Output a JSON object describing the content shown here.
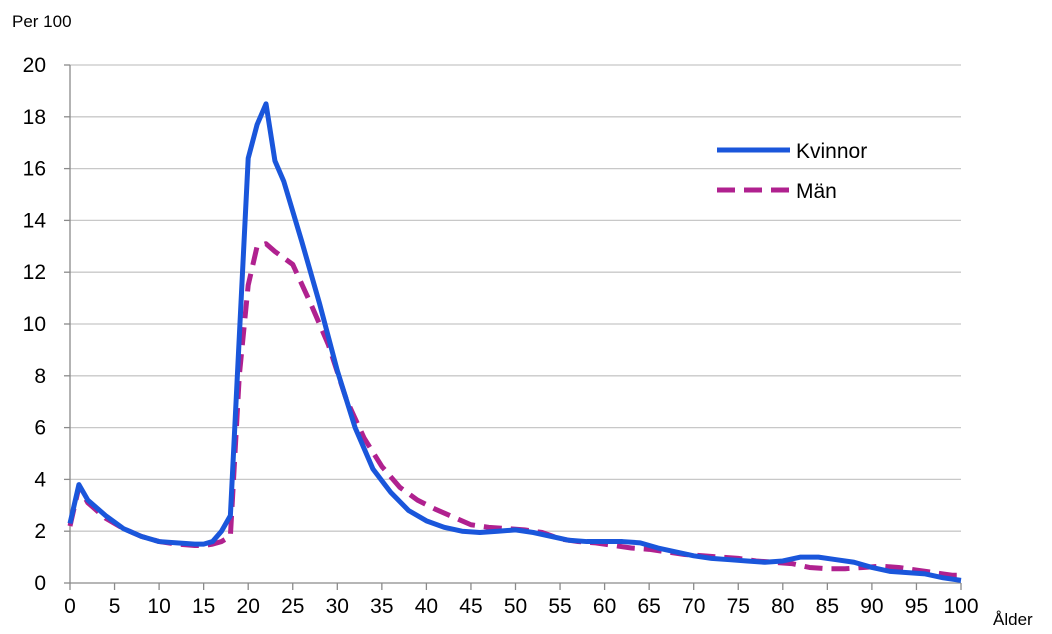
{
  "chart_data": {
    "type": "line",
    "ylabel": "Per 100",
    "xlabel": "Ålder",
    "xlim": [
      0,
      100
    ],
    "ylim": [
      0,
      20
    ],
    "x_ticks": [
      "0",
      "5",
      "10",
      "15",
      "20",
      "25",
      "30",
      "35",
      "40",
      "45",
      "50",
      "55",
      "60",
      "65",
      "70",
      "75",
      "80",
      "85",
      "90",
      "95",
      "100"
    ],
    "y_ticks": [
      "0",
      "2",
      "4",
      "6",
      "8",
      "10",
      "12",
      "14",
      "16",
      "18",
      "20"
    ],
    "grid": "horizontal",
    "legend_position": "top-right",
    "series": [
      {
        "name": "Kvinnor",
        "color": "#1a56db",
        "style": "solid",
        "points": [
          [
            0,
            2.3
          ],
          [
            1,
            3.8
          ],
          [
            2,
            3.2
          ],
          [
            4,
            2.6
          ],
          [
            6,
            2.1
          ],
          [
            8,
            1.8
          ],
          [
            10,
            1.6
          ],
          [
            12,
            1.55
          ],
          [
            14,
            1.5
          ],
          [
            15,
            1.5
          ],
          [
            16,
            1.6
          ],
          [
            17,
            2.0
          ],
          [
            18,
            2.6
          ],
          [
            19,
            9.5
          ],
          [
            20,
            16.4
          ],
          [
            21,
            17.7
          ],
          [
            22,
            18.5
          ],
          [
            23,
            16.3
          ],
          [
            24,
            15.5
          ],
          [
            26,
            13.2
          ],
          [
            28,
            10.8
          ],
          [
            30,
            8.2
          ],
          [
            32,
            6.0
          ],
          [
            34,
            4.4
          ],
          [
            36,
            3.5
          ],
          [
            38,
            2.8
          ],
          [
            40,
            2.4
          ],
          [
            42,
            2.15
          ],
          [
            44,
            2.0
          ],
          [
            46,
            1.95
          ],
          [
            48,
            2.0
          ],
          [
            50,
            2.05
          ],
          [
            52,
            1.95
          ],
          [
            54,
            1.8
          ],
          [
            56,
            1.65
          ],
          [
            58,
            1.6
          ],
          [
            60,
            1.6
          ],
          [
            62,
            1.6
          ],
          [
            64,
            1.55
          ],
          [
            66,
            1.35
          ],
          [
            68,
            1.2
          ],
          [
            70,
            1.05
          ],
          [
            72,
            0.95
          ],
          [
            74,
            0.9
          ],
          [
            76,
            0.85
          ],
          [
            78,
            0.8
          ],
          [
            80,
            0.85
          ],
          [
            82,
            1.0
          ],
          [
            84,
            1.0
          ],
          [
            86,
            0.9
          ],
          [
            88,
            0.8
          ],
          [
            90,
            0.6
          ],
          [
            92,
            0.45
          ],
          [
            94,
            0.4
          ],
          [
            96,
            0.35
          ],
          [
            98,
            0.2
          ],
          [
            100,
            0.1
          ]
        ]
      },
      {
        "name": "Män",
        "color": "#b0218f",
        "style": "dashed",
        "points": [
          [
            0,
            2.2
          ],
          [
            1,
            3.7
          ],
          [
            2,
            3.1
          ],
          [
            4,
            2.5
          ],
          [
            6,
            2.1
          ],
          [
            8,
            1.8
          ],
          [
            10,
            1.6
          ],
          [
            12,
            1.5
          ],
          [
            14,
            1.45
          ],
          [
            15,
            1.45
          ],
          [
            16,
            1.5
          ],
          [
            17,
            1.6
          ],
          [
            18,
            1.8
          ],
          [
            19,
            8.0
          ],
          [
            20,
            11.5
          ],
          [
            21,
            13.0
          ],
          [
            22,
            13.1
          ],
          [
            23,
            12.8
          ],
          [
            25,
            12.3
          ],
          [
            27,
            10.8
          ],
          [
            29,
            9.2
          ],
          [
            31,
            7.1
          ],
          [
            33,
            5.6
          ],
          [
            35,
            4.5
          ],
          [
            37,
            3.7
          ],
          [
            39,
            3.2
          ],
          [
            41,
            2.85
          ],
          [
            43,
            2.55
          ],
          [
            45,
            2.25
          ],
          [
            47,
            2.15
          ],
          [
            49,
            2.1
          ],
          [
            51,
            2.05
          ],
          [
            53,
            1.95
          ],
          [
            55,
            1.7
          ],
          [
            57,
            1.6
          ],
          [
            59,
            1.55
          ],
          [
            61,
            1.45
          ],
          [
            63,
            1.35
          ],
          [
            65,
            1.3
          ],
          [
            67,
            1.2
          ],
          [
            69,
            1.1
          ],
          [
            71,
            1.05
          ],
          [
            73,
            1.0
          ],
          [
            75,
            0.95
          ],
          [
            77,
            0.85
          ],
          [
            79,
            0.8
          ],
          [
            81,
            0.75
          ],
          [
            83,
            0.6
          ],
          [
            85,
            0.55
          ],
          [
            87,
            0.55
          ],
          [
            89,
            0.6
          ],
          [
            91,
            0.65
          ],
          [
            93,
            0.6
          ],
          [
            95,
            0.5
          ],
          [
            97,
            0.4
          ],
          [
            98,
            0.35
          ],
          [
            99,
            0.3
          ],
          [
            100,
            0.3
          ]
        ]
      }
    ]
  }
}
